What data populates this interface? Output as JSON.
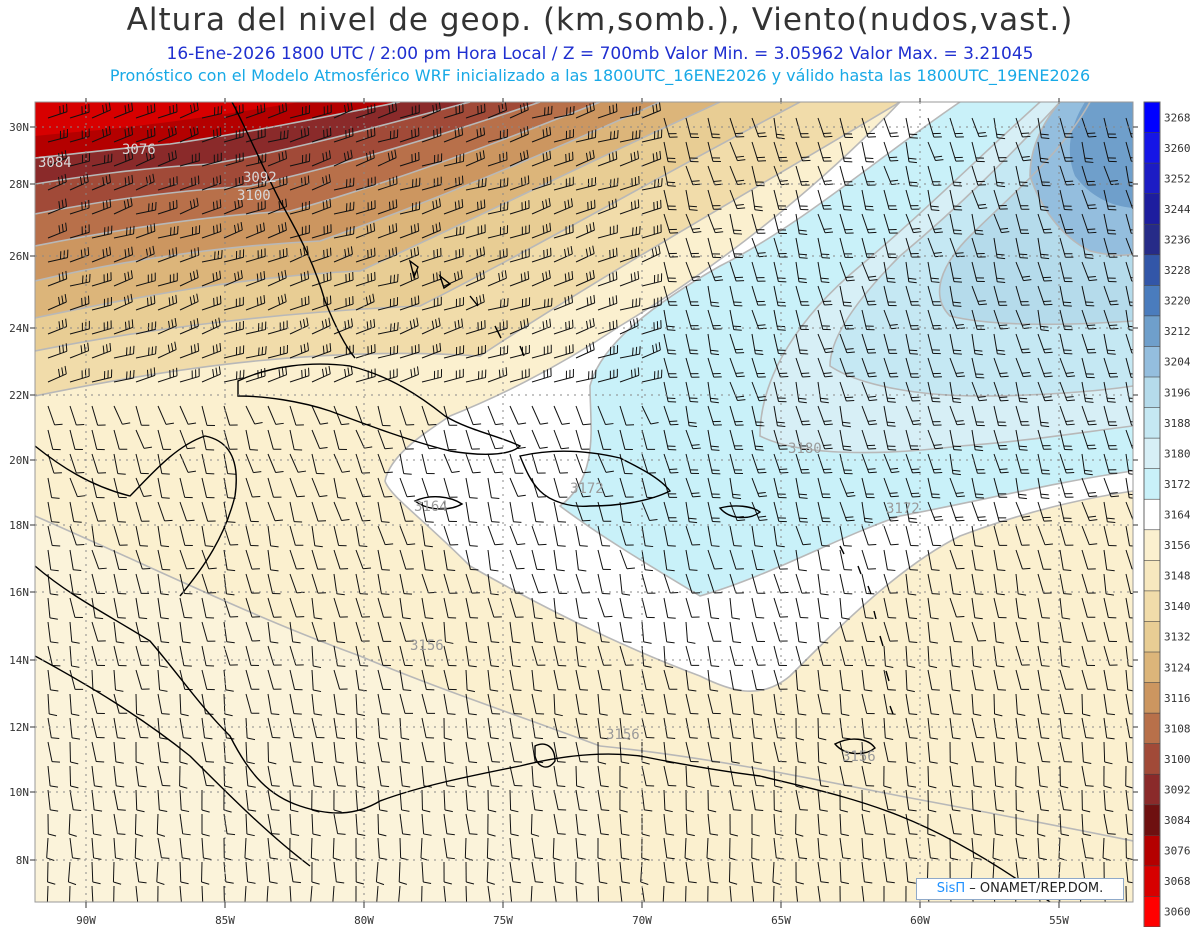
{
  "header": {
    "title": "Altura del nivel de geop. (km,somb.), Viento(nudos,vast.)",
    "line2": "16-Ene-2026  1800 UTC / 2:00 pm Hora Local / Z = 700mb     Valor Min. = 3.05962  Valor Max. = 3.21045",
    "line3": "Pronóstico con el Modelo Atmosférico WRF inicializado a las 1800UTC_16ENE2026 y válido hasta las  1800UTC_19ENE2026"
  },
  "map": {
    "lon_ticks": [
      "90W",
      "85W",
      "80W",
      "75W",
      "70W",
      "65W",
      "60W",
      "55W"
    ],
    "lat_ticks": [
      "30N",
      "28N",
      "26N",
      "24N",
      "22N",
      "20N",
      "18N",
      "16N",
      "14N",
      "12N",
      "10N",
      "8N"
    ],
    "contour_labels": [
      "3076",
      "3084",
      "3092",
      "3100",
      "3164",
      "3172",
      "3180",
      "3172",
      "3156",
      "3156",
      "3156"
    ]
  },
  "colorbar": {
    "labels": [
      "3268",
      "3260",
      "3252",
      "3244",
      "3236",
      "3228",
      "3220",
      "3212",
      "3204",
      "3196",
      "3188",
      "3180",
      "3172",
      "3164",
      "3156",
      "3148",
      "3140",
      "3132",
      "3124",
      "3116",
      "3108",
      "3100",
      "3092",
      "3084",
      "3076",
      "3068",
      "3060"
    ],
    "colors": [
      "#0000ff",
      "#1515e6",
      "#1c1cc4",
      "#1d1d9e",
      "#262b88",
      "#3256a8",
      "#4a7cbd",
      "#6f9fcb",
      "#94bede",
      "#b5dbeb",
      "#c5e8f3",
      "#d7eff6",
      "#c9f1f9",
      "#ffffff",
      "#fbf0cf",
      "#f7e8bf",
      "#f1dcaa",
      "#e8cd94",
      "#dcb57a",
      "#cc9660",
      "#b8704a",
      "#a14a38",
      "#8a2a2a",
      "#6e1010",
      "#b40000",
      "#d70000",
      "#ff0000"
    ]
  },
  "credit": {
    "brand": "SisΠ",
    "text": "– ONAMET/REP.DOM."
  }
}
